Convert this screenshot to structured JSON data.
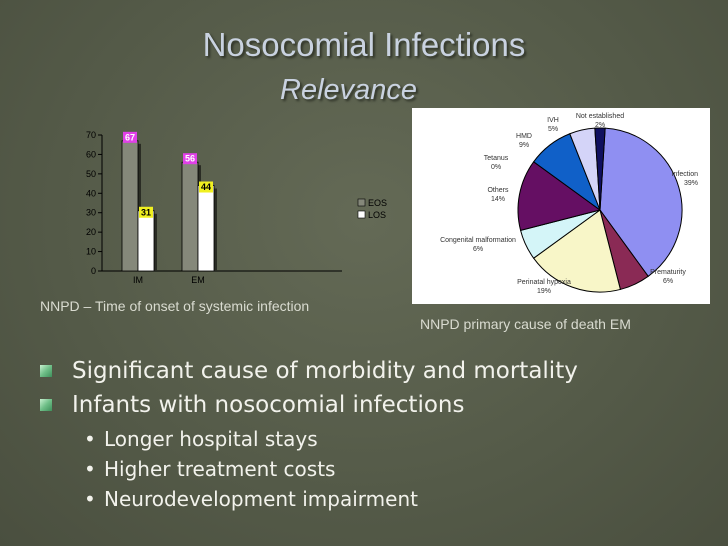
{
  "slide": {
    "title": "Nosocomial Infections",
    "subtitle": "Relevance",
    "caption_left": "NNPD – Time of onset of systemic infection",
    "caption_right": "NNPD primary cause of death EM"
  },
  "bullets": [
    {
      "text": "Significant cause of morbidity and mortality",
      "level": 1
    },
    {
      "text": "Infants with nosocomial infections",
      "level": 1
    },
    {
      "text": "Longer hospital stays",
      "level": 2
    },
    {
      "text": "Higher treatment costs",
      "level": 2
    },
    {
      "text": "Neurodevelopment impairment",
      "level": 2
    }
  ],
  "colors": {
    "eos": "#85887a",
    "los": "#ffffff",
    "label_eos": "#e040e8",
    "label_los": "#f0f020"
  },
  "chart_data": [
    {
      "type": "bar",
      "categories": [
        "IM",
        "EM"
      ],
      "series": [
        {
          "name": "EOS",
          "values": [
            67,
            56
          ]
        },
        {
          "name": "LOS",
          "values": [
            31,
            44
          ]
        }
      ],
      "ylim": [
        0,
        70
      ],
      "yticks": [
        0,
        10,
        20,
        30,
        40,
        50,
        60,
        70
      ],
      "legend": "right",
      "grid": false
    },
    {
      "type": "pie",
      "slices": [
        {
          "label": "Infection",
          "value": 39,
          "display": "39%",
          "color": "#8f8ff2"
        },
        {
          "label": "Prematurity",
          "value": 6,
          "display": "6%",
          "color": "#8a2a55"
        },
        {
          "label": "Perinatal hypoxia",
          "value": 19,
          "display": "19%",
          "color": "#f8f6c8"
        },
        {
          "label": "Congenital malformation",
          "value": 6,
          "display": "6%",
          "color": "#d4f5f8"
        },
        {
          "label": "Others",
          "value": 14,
          "display": "14%",
          "color": "#650f63"
        },
        {
          "label": "Tetanus",
          "value": 0,
          "display": "0%",
          "color": "#f08070"
        },
        {
          "label": "HMD",
          "value": 9,
          "display": "9%",
          "color": "#1060c8"
        },
        {
          "label": "IVH",
          "value": 5,
          "display": "5%",
          "color": "#d4d4f8"
        },
        {
          "label": "Not established",
          "value": 2,
          "display": "2%",
          "color": "#101060"
        }
      ]
    }
  ]
}
